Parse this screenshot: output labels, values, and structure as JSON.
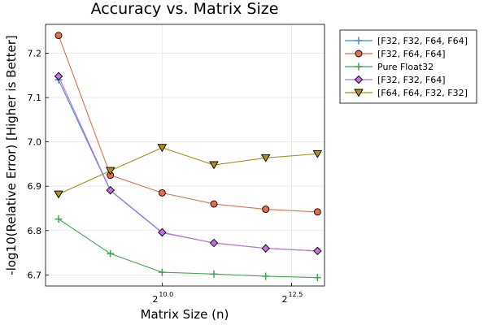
{
  "chart_data": {
    "type": "line",
    "title": "Accuracy vs. Matrix Size",
    "xlabel": "Matrix Size (n)",
    "ylabel": "-log10(Relative Error) [Higher is Better]",
    "x_scale": "log2",
    "x": [
      256,
      512,
      1024,
      2048,
      4096,
      8192
    ],
    "x_ticks": [
      {
        "base": "2",
        "exp": "10.0",
        "value": 1024
      },
      {
        "base": "2",
        "exp": "12.5",
        "value": 5793
      }
    ],
    "xlim": [
      215,
      9000
    ],
    "ylim": [
      6.675,
      7.265
    ],
    "y_ticks": [
      "6.7",
      "6.8",
      "6.9",
      "7.0",
      "7.1",
      "7.2"
    ],
    "grid": true,
    "legend_position": "top-right outside",
    "series": [
      {
        "name": "[F32, F32, F64, F64]",
        "marker": "plus",
        "color": "#3a8fd6",
        "values": [
          7.14,
          6.89,
          6.795,
          6.772,
          6.76,
          6.754
        ]
      },
      {
        "name": "[F32, F64, F64]",
        "marker": "circle",
        "color": "#e26f46",
        "values": [
          7.24,
          6.925,
          6.885,
          6.86,
          6.848,
          6.842
        ]
      },
      {
        "name": "Pure Float32",
        "marker": "plus",
        "color": "#3da44d",
        "values": [
          6.826,
          6.748,
          6.706,
          6.702,
          6.697,
          6.694
        ]
      },
      {
        "name": "[F32, F32, F64]",
        "marker": "diamond",
        "color": "#c272e0",
        "values": [
          7.148,
          6.891,
          6.796,
          6.772,
          6.76,
          6.754
        ]
      },
      {
        "name": "[F64, F64, F32, F32]",
        "marker": "triangle-down",
        "color": "#ac8e18",
        "values": [
          6.882,
          6.935,
          6.987,
          6.948,
          6.964,
          6.973
        ]
      }
    ]
  }
}
